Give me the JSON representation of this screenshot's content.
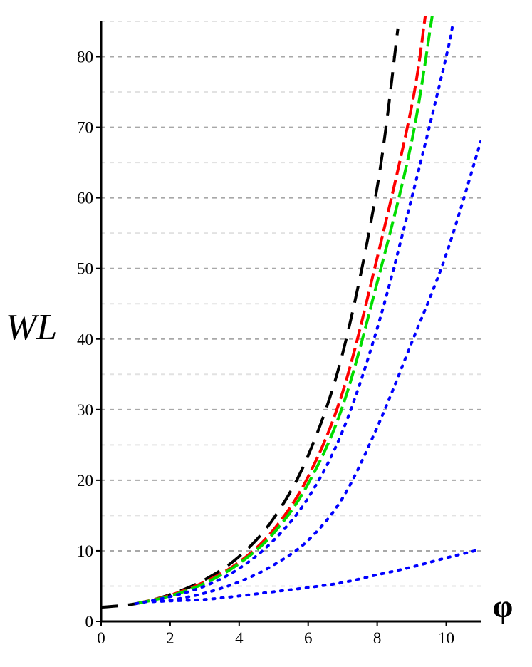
{
  "chart_data": {
    "type": "line",
    "title": "",
    "xlabel": "φ",
    "ylabel": "WL",
    "xlim": [
      0,
      11
    ],
    "ylim": [
      0,
      85
    ],
    "x_ticks": [
      0,
      2,
      4,
      6,
      8,
      10
    ],
    "y_ticks": [
      0,
      10,
      20,
      30,
      40,
      50,
      60,
      70,
      80
    ],
    "grid": {
      "major_y": [
        10,
        20,
        30,
        40,
        50,
        60,
        70,
        80
      ],
      "minor_y": [
        5,
        15,
        25,
        35,
        45,
        55,
        65,
        75,
        85
      ],
      "style": "dashed",
      "color": "#a8a8a8"
    },
    "legend": "none",
    "series": [
      {
        "color": "#000000",
        "style": "dashed-long",
        "points": [
          [
            0,
            2.0
          ],
          [
            1,
            2.5
          ],
          [
            2,
            3.8
          ],
          [
            3,
            5.9
          ],
          [
            4,
            9.2
          ],
          [
            5,
            14.6
          ],
          [
            6,
            23.5
          ],
          [
            7,
            38.0
          ],
          [
            8,
            61.5
          ],
          [
            8.6,
            84.0
          ]
        ]
      },
      {
        "color": "#ff0000",
        "style": "dashed",
        "points": [
          [
            1,
            2.5
          ],
          [
            2,
            3.7
          ],
          [
            3,
            5.6
          ],
          [
            4,
            8.4
          ],
          [
            5,
            13.0
          ],
          [
            6,
            20.5
          ],
          [
            7,
            32.5
          ],
          [
            8,
            51.5
          ],
          [
            9,
            73.0
          ],
          [
            9.4,
            86.0
          ]
        ]
      },
      {
        "color": "#00dd00",
        "style": "dashed",
        "points": [
          [
            1,
            2.5
          ],
          [
            2,
            3.6
          ],
          [
            3,
            5.4
          ],
          [
            4,
            8.2
          ],
          [
            5,
            12.5
          ],
          [
            6,
            19.5
          ],
          [
            7,
            30.5
          ],
          [
            8,
            48.0
          ],
          [
            9,
            68.0
          ],
          [
            9.6,
            86.0
          ]
        ]
      },
      {
        "color": "#0000ff",
        "style": "dotted",
        "points": [
          [
            1,
            2.5
          ],
          [
            2,
            3.5
          ],
          [
            3,
            5.0
          ],
          [
            4,
            7.5
          ],
          [
            5,
            11.5
          ],
          [
            6,
            17.5
          ],
          [
            7,
            27.0
          ],
          [
            8,
            41.5
          ],
          [
            9,
            60.0
          ],
          [
            10,
            80.0
          ],
          [
            10.2,
            85.0
          ]
        ]
      },
      {
        "color": "#0000ff",
        "style": "dotted",
        "points": [
          [
            1.5,
            2.8
          ],
          [
            2,
            3.0
          ],
          [
            3,
            4.0
          ],
          [
            4,
            5.6
          ],
          [
            5,
            8.0
          ],
          [
            6,
            11.5
          ],
          [
            7,
            17.5
          ],
          [
            8,
            27.5
          ],
          [
            9,
            39.5
          ],
          [
            10,
            52.0
          ],
          [
            11,
            68.0
          ]
        ]
      },
      {
        "color": "#0000ff",
        "style": "dotted",
        "points": [
          [
            1.5,
            2.8
          ],
          [
            2,
            2.9
          ],
          [
            3,
            3.1
          ],
          [
            4,
            3.6
          ],
          [
            5,
            4.2
          ],
          [
            6,
            4.8
          ],
          [
            7,
            5.5
          ],
          [
            8,
            6.6
          ],
          [
            9,
            7.7
          ],
          [
            10,
            9.0
          ],
          [
            11,
            10.2
          ]
        ]
      }
    ]
  }
}
